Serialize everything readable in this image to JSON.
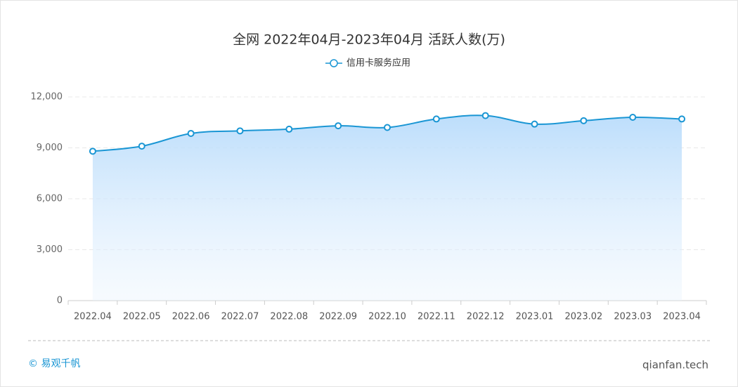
{
  "chart_data": {
    "type": "area",
    "title": "全网 2022年04月-2023年04月 活跃人数(万)",
    "categories": [
      "2022.04",
      "2022.05",
      "2022.06",
      "2022.07",
      "2022.08",
      "2022.09",
      "2022.10",
      "2022.11",
      "2022.12",
      "2023.01",
      "2023.02",
      "2023.03",
      "2023.04"
    ],
    "series": [
      {
        "name": "信用卡服务应用",
        "color": "#1a96d4",
        "values": [
          8800,
          9100,
          9850,
          10000,
          10100,
          10300,
          10200,
          10700,
          10900,
          10400,
          10600,
          10800,
          10700
        ]
      }
    ],
    "ylim": [
      0,
      12000
    ],
    "yticks": [
      0,
      {
        "value": 3000,
        "label": "3,000"
      },
      {
        "value": 6000,
        "label": "6,000"
      },
      {
        "value": 9000,
        "label": "9,000"
      },
      {
        "value": 12000,
        "label": "12,000"
      }
    ],
    "grid": true,
    "legend": "top"
  },
  "footer": {
    "brand": "© 易观千帆",
    "site": "qianfan.tech"
  }
}
